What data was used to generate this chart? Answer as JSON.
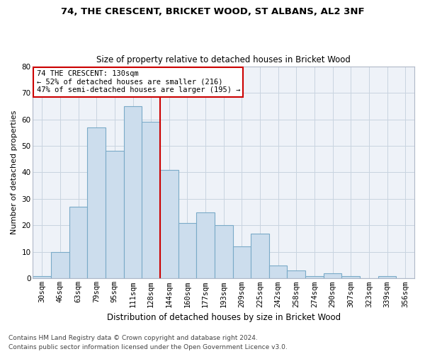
{
  "title1": "74, THE CRESCENT, BRICKET WOOD, ST ALBANS, AL2 3NF",
  "title2": "Size of property relative to detached houses in Bricket Wood",
  "xlabel": "Distribution of detached houses by size in Bricket Wood",
  "ylabel": "Number of detached properties",
  "bin_labels": [
    "30sqm",
    "46sqm",
    "63sqm",
    "79sqm",
    "95sqm",
    "111sqm",
    "128sqm",
    "144sqm",
    "160sqm",
    "177sqm",
    "193sqm",
    "209sqm",
    "225sqm",
    "242sqm",
    "258sqm",
    "274sqm",
    "290sqm",
    "307sqm",
    "323sqm",
    "339sqm",
    "356sqm"
  ],
  "bar_heights": [
    1,
    10,
    27,
    57,
    48,
    65,
    59,
    41,
    21,
    25,
    20,
    12,
    17,
    5,
    3,
    1,
    2,
    1,
    0,
    1,
    0
  ],
  "bar_color": "#ccdded",
  "bar_edge_color": "#7aaac8",
  "vline_color": "#cc0000",
  "annotation_line1": "74 THE CRESCENT: 130sqm",
  "annotation_line2": "← 52% of detached houses are smaller (216)",
  "annotation_line3": "47% of semi-detached houses are larger (195) →",
  "annotation_box_color": "white",
  "annotation_box_edge_color": "#cc0000",
  "ylim": [
    0,
    80
  ],
  "yticks": [
    0,
    10,
    20,
    30,
    40,
    50,
    60,
    70,
    80
  ],
  "footer1": "Contains HM Land Registry data © Crown copyright and database right 2024.",
  "footer2": "Contains public sector information licensed under the Open Government Licence v3.0.",
  "background_color": "#eef2f8",
  "grid_color": "#c8d4e0",
  "title1_fontsize": 9.5,
  "title2_fontsize": 8.5,
  "xlabel_fontsize": 8.5,
  "ylabel_fontsize": 8,
  "tick_fontsize": 7.5,
  "annot_fontsize": 7.5,
  "footer_fontsize": 6.5
}
